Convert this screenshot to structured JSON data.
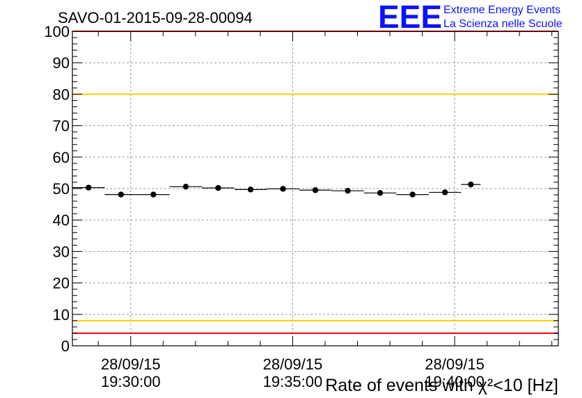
{
  "chart_data": {
    "type": "scatter",
    "title": "SAVO-01-2015-09-28-00094",
    "brand": {
      "logo": "EEE",
      "line1": "Extreme Energy Events",
      "line2": "La Scienza nelle Scuole"
    },
    "xlabel": "Rate of events with χ²<10 [Hz]",
    "ylabel": "",
    "ylim": [
      0,
      100
    ],
    "yticks": [
      "0",
      "10",
      "20",
      "30",
      "40",
      "50",
      "60",
      "70",
      "80",
      "90",
      "100"
    ],
    "xlim": [
      0,
      15
    ],
    "xticks": [
      {
        "pos": 1.8,
        "date": "28/09/15",
        "time": "19:30:00"
      },
      {
        "pos": 6.8,
        "date": "28/09/15",
        "time": "19:35:00"
      },
      {
        "pos": 11.8,
        "date": "28/09/15",
        "time": "19:40:00"
      }
    ],
    "reference_lines": [
      {
        "value": 100,
        "color": "#ff0000"
      },
      {
        "value": 80,
        "color": "#ffcc00"
      },
      {
        "value": 8,
        "color": "#ffcc00"
      },
      {
        "value": 4,
        "color": "#ff0000"
      }
    ],
    "series": [
      {
        "name": "rate",
        "bins": [
          {
            "x0": 0,
            "x1": 1,
            "y": 50.3
          },
          {
            "x0": 1,
            "x1": 2,
            "y": 48.1
          },
          {
            "x0": 2,
            "x1": 3,
            "y": 48.1
          },
          {
            "x0": 3,
            "x1": 4,
            "y": 50.6
          },
          {
            "x0": 4,
            "x1": 5,
            "y": 50.2
          },
          {
            "x0": 5,
            "x1": 6,
            "y": 49.7
          },
          {
            "x0": 6,
            "x1": 7,
            "y": 49.9
          },
          {
            "x0": 7,
            "x1": 8,
            "y": 49.5
          },
          {
            "x0": 8,
            "x1": 9,
            "y": 49.3
          },
          {
            "x0": 9,
            "x1": 10,
            "y": 48.6
          },
          {
            "x0": 10,
            "x1": 11,
            "y": 48.1
          },
          {
            "x0": 11,
            "x1": 12,
            "y": 48.8
          },
          {
            "x0": 12,
            "x1": 12.6,
            "y": 51.3
          }
        ],
        "color": "#000000"
      }
    ],
    "grid": true
  }
}
